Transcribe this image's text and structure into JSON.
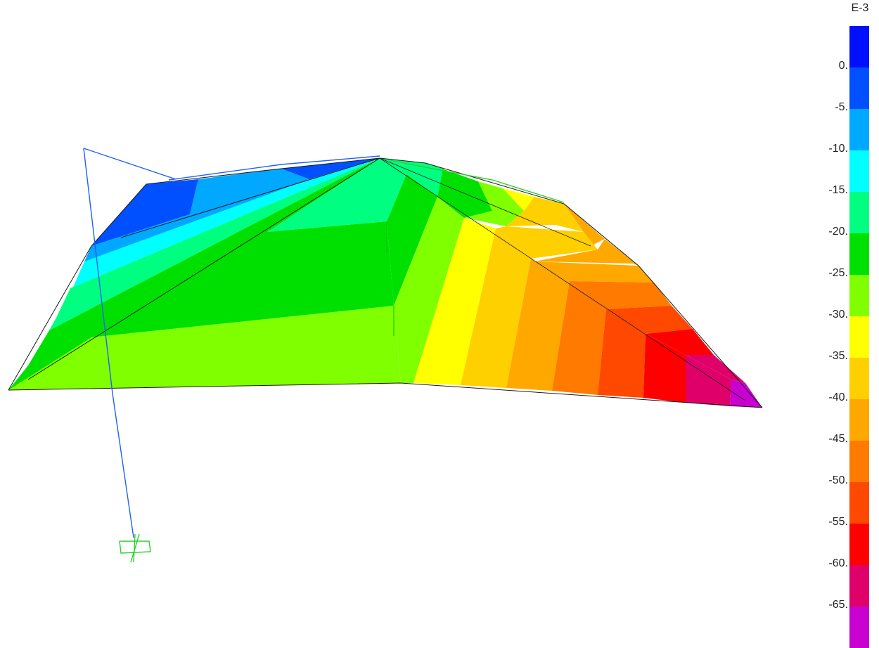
{
  "legend": {
    "exponent": "E-3",
    "colors": [
      "#0010ff",
      "#0050ff",
      "#00a8ff",
      "#00ffff",
      "#00ff80",
      "#00e000",
      "#80ff00",
      "#ffff00",
      "#ffd000",
      "#ffa800",
      "#ff7a00",
      "#ff4800",
      "#ff0000",
      "#e0006a",
      "#c800d0"
    ],
    "labels": [
      "0.",
      "-5.",
      "-10.",
      "-15.",
      "-20.",
      "-25.",
      "-30.",
      "-35.",
      "-40.",
      "-45.",
      "-50.",
      "-55.",
      "-60.",
      "-65."
    ]
  }
}
